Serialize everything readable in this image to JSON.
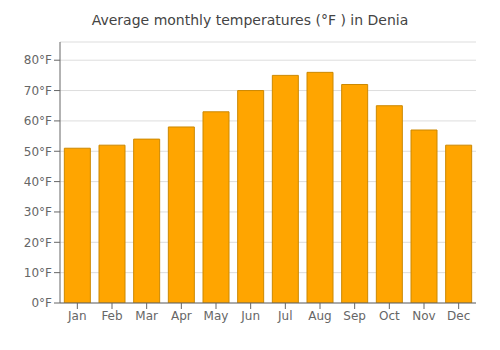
{
  "chart_data": {
    "type": "bar",
    "title": "Average monthly temperatures (°F ) in Denia",
    "categories": [
      "Jan",
      "Feb",
      "Mar",
      "Apr",
      "May",
      "Jun",
      "Jul",
      "Aug",
      "Sep",
      "Oct",
      "Nov",
      "Dec"
    ],
    "values": [
      51,
      52,
      54,
      58,
      63,
      70,
      75,
      76,
      72,
      65,
      57,
      52
    ],
    "color": "#FFA500",
    "ylim": [
      0,
      86
    ],
    "yticks": [
      {
        "value": 0,
        "label": "0°F"
      },
      {
        "value": 10,
        "label": "10°F"
      },
      {
        "value": 20,
        "label": "20°F"
      },
      {
        "value": 30,
        "label": "30°F"
      },
      {
        "value": 40,
        "label": "40°F"
      },
      {
        "value": 50,
        "label": "50°F"
      },
      {
        "value": 60,
        "label": "60°F"
      },
      {
        "value": 70,
        "label": "70°F"
      },
      {
        "value": 80,
        "label": "80°F"
      }
    ],
    "grid": true
  }
}
